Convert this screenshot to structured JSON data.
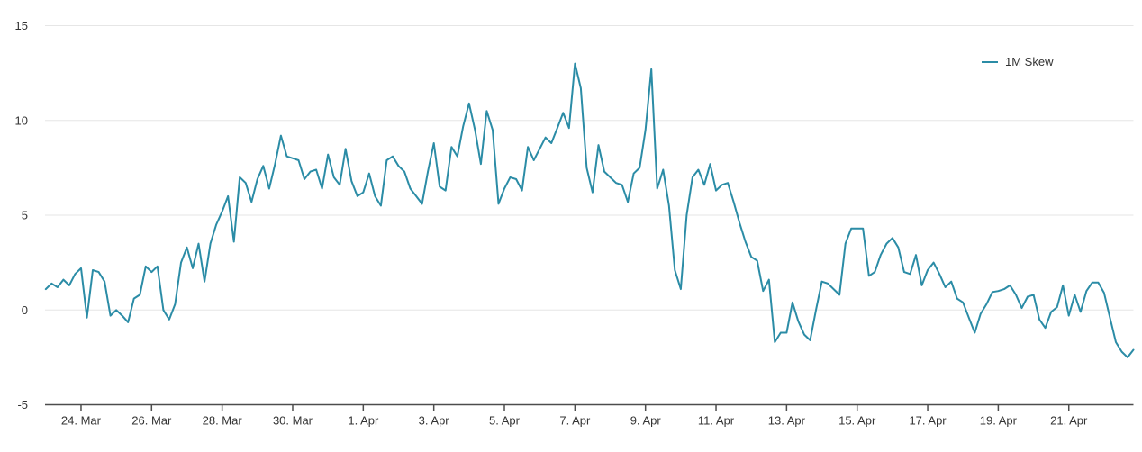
{
  "chart_data": {
    "type": "line",
    "title": "",
    "legend": {
      "label": "1M Skew",
      "position": "top-right"
    },
    "series": [
      {
        "name": "1M Skew",
        "color": "#2b8ca6",
        "x_start": "23. Mar",
        "x_end": "22. Apr",
        "sample_interval_hours": 4,
        "values": [
          1.1,
          1.4,
          1.2,
          1.6,
          1.3,
          1.9,
          2.2,
          -0.4,
          2.1,
          2.0,
          1.5,
          -0.3,
          0.0,
          -0.3,
          -0.65,
          0.6,
          0.8,
          2.3,
          2.0,
          2.3,
          0.0,
          -0.5,
          0.3,
          2.5,
          3.3,
          2.2,
          3.5,
          1.5,
          3.5,
          4.5,
          5.2,
          6.0,
          3.6,
          7.0,
          6.7,
          5.7,
          6.9,
          7.6,
          6.4,
          7.7,
          9.2,
          8.1,
          8.0,
          7.9,
          6.9,
          7.3,
          7.4,
          6.4,
          8.2,
          7.0,
          6.6,
          8.5,
          6.8,
          6.0,
          6.2,
          7.2,
          6.0,
          5.5,
          7.9,
          8.1,
          7.6,
          7.3,
          6.4,
          6.0,
          5.6,
          7.3,
          8.8,
          6.5,
          6.3,
          8.6,
          8.1,
          9.7,
          10.9,
          9.5,
          7.7,
          10.5,
          9.5,
          5.6,
          6.4,
          7.0,
          6.9,
          6.3,
          8.6,
          7.9,
          8.5,
          9.1,
          8.8,
          9.6,
          10.4,
          9.6,
          13.0,
          11.7,
          7.5,
          6.2,
          8.7,
          7.3,
          7.0,
          6.7,
          6.6,
          5.7,
          7.2,
          7.5,
          9.5,
          12.7,
          6.4,
          7.4,
          5.5,
          2.1,
          1.1,
          5.0,
          7.0,
          7.4,
          6.6,
          7.7,
          6.3,
          6.6,
          6.7,
          5.7,
          4.6,
          3.6,
          2.8,
          2.6,
          1.0,
          1.6,
          -1.7,
          -1.2,
          -1.2,
          0.4,
          -0.6,
          -1.3,
          -1.6,
          0.0,
          1.5,
          1.4,
          1.1,
          0.8,
          3.5,
          4.3,
          4.3,
          4.3,
          1.8,
          2.0,
          2.9,
          3.5,
          3.8,
          3.3,
          2.0,
          1.9,
          2.9,
          1.3,
          2.1,
          2.5,
          1.9,
          1.2,
          1.5,
          0.6,
          0.4,
          -0.4,
          -1.2,
          -0.2,
          0.3,
          0.95,
          1.0,
          1.1,
          1.3,
          0.8,
          0.1,
          0.7,
          0.8,
          -0.5,
          -0.95,
          -0.1,
          0.15,
          1.3,
          -0.3,
          0.8,
          -0.1,
          1.0,
          1.45,
          1.45,
          0.9,
          -0.4,
          -1.7,
          -2.2,
          -2.5,
          -2.1
        ]
      }
    ],
    "xlabel": "",
    "ylabel": "",
    "ylim": [
      -5,
      15
    ],
    "yticks": [
      -5,
      0,
      5,
      10,
      15
    ],
    "xticks": [
      {
        "label": "24. Mar",
        "day": 1
      },
      {
        "label": "26. Mar",
        "day": 3
      },
      {
        "label": "28. Mar",
        "day": 5
      },
      {
        "label": "30. Mar",
        "day": 7
      },
      {
        "label": "1. Apr",
        "day": 9
      },
      {
        "label": "3. Apr",
        "day": 11
      },
      {
        "label": "5. Apr",
        "day": 13
      },
      {
        "label": "7. Apr",
        "day": 15
      },
      {
        "label": "9. Apr",
        "day": 17
      },
      {
        "label": "11. Apr",
        "day": 19
      },
      {
        "label": "13. Apr",
        "day": 21
      },
      {
        "label": "15. Apr",
        "day": 23
      },
      {
        "label": "17. Apr",
        "day": 25
      },
      {
        "label": "19. Apr",
        "day": 27
      },
      {
        "label": "21. Apr",
        "day": 29
      }
    ],
    "grid": "horizontal",
    "colors": {
      "line": "#2b8ca6",
      "gridline": "#e6e6e6",
      "axis_line": "#4d4d4d",
      "tick": "#4d4d4d",
      "label": "#333333",
      "background": "#ffffff"
    }
  }
}
